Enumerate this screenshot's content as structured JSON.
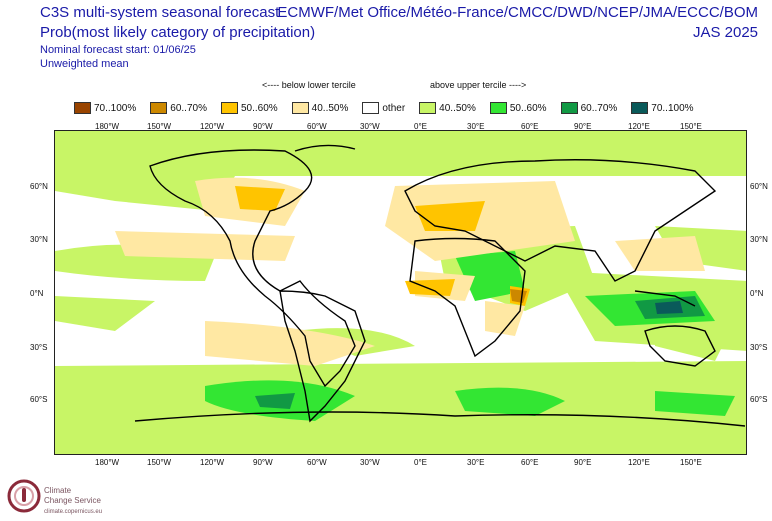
{
  "header": {
    "title": "C3S multi-system seasonal forecast",
    "subtitle": "Prob(most likely category of precipitation)",
    "start": "Nominal forecast start: 01/06/25",
    "mean": "Unweighted mean",
    "centres": "ECMWF/Met Office/Météo-France/CMCC/DWD/NCEP/JMA/ECCC/BOM",
    "season": "JAS 2025"
  },
  "terciles": {
    "below": "<---- below lower tercile",
    "above": "above upper tercile ---->"
  },
  "legend": [
    {
      "label": "70..100%",
      "color": "#994400"
    },
    {
      "label": "60..70%",
      "color": "#cc8800"
    },
    {
      "label": "50..60%",
      "color": "#ffc400"
    },
    {
      "label": "40..50%",
      "color": "#ffe8a3"
    },
    {
      "label": "other",
      "color": "#ffffff"
    },
    {
      "label": "40..50%",
      "color": "#c8f566"
    },
    {
      "label": "50..60%",
      "color": "#33e633"
    },
    {
      "label": "60..70%",
      "color": "#119944"
    },
    {
      "label": "70..100%",
      "color": "#0a5a5a"
    }
  ],
  "axes": {
    "lon": [
      "180°W",
      "150°W",
      "120°W",
      "90°W",
      "60°W",
      "30°W",
      "0°E",
      "30°E",
      "60°E",
      "90°E",
      "120°E",
      "150°E"
    ],
    "lat": [
      "60°N",
      "30°N",
      "0°N",
      "30°S",
      "60°S"
    ]
  },
  "logo": {
    "line1": "Climate",
    "line2": "Change Service",
    "url": "climate.copernicus.eu"
  }
}
